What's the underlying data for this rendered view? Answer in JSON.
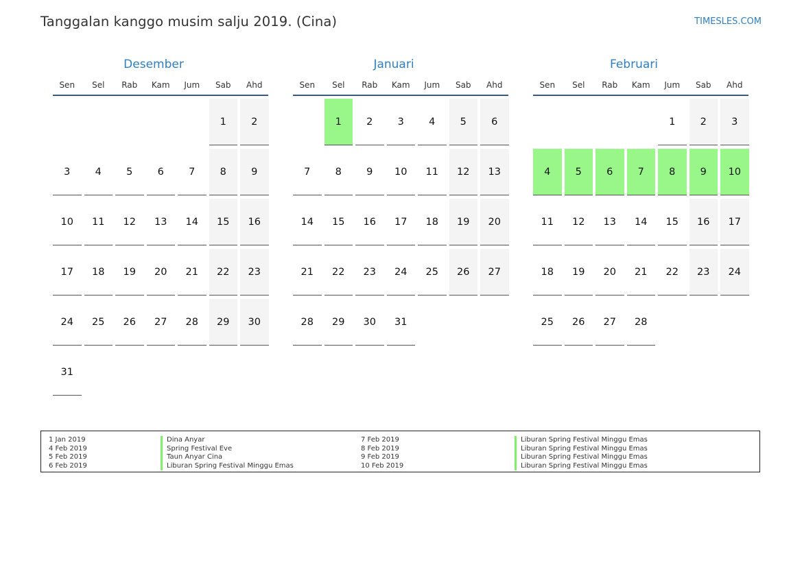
{
  "title": "Tanggalan kanggo musim salju 2019. (Cina)",
  "site": "TIMESLES.COM",
  "weekdays": [
    "Sen",
    "Sel",
    "Rab",
    "Kam",
    "Jum",
    "Sab",
    "Ahd"
  ],
  "colors": {
    "accent": "#2f7fc1",
    "holiday": "#99f78a",
    "weekend": "#f4f4f4"
  },
  "months": [
    {
      "name": "Desember",
      "offset": 5,
      "days": 31,
      "holidays": []
    },
    {
      "name": "Januari",
      "offset": 1,
      "days": 31,
      "holidays": [
        1
      ]
    },
    {
      "name": "Februari",
      "offset": 4,
      "days": 28,
      "holidays": [
        4,
        5,
        6,
        7,
        8,
        9,
        10
      ]
    }
  ],
  "holidays_list": [
    {
      "date": "1 Jan 2019",
      "name": "Dina Anyar"
    },
    {
      "date": "4 Feb 2019",
      "name": "Spring Festival Eve"
    },
    {
      "date": "5 Feb 2019",
      "name": "Taun Anyar Cina"
    },
    {
      "date": "6 Feb 2019",
      "name": "Liburan Spring Festival Minggu Emas"
    },
    {
      "date": "7 Feb 2019",
      "name": "Liburan Spring Festival Minggu Emas"
    },
    {
      "date": "8 Feb 2019",
      "name": "Liburan Spring Festival Minggu Emas"
    },
    {
      "date": "9 Feb 2019",
      "name": "Liburan Spring Festival Minggu Emas"
    },
    {
      "date": "10 Feb 2019",
      "name": "Liburan Spring Festival Minggu Emas"
    }
  ]
}
